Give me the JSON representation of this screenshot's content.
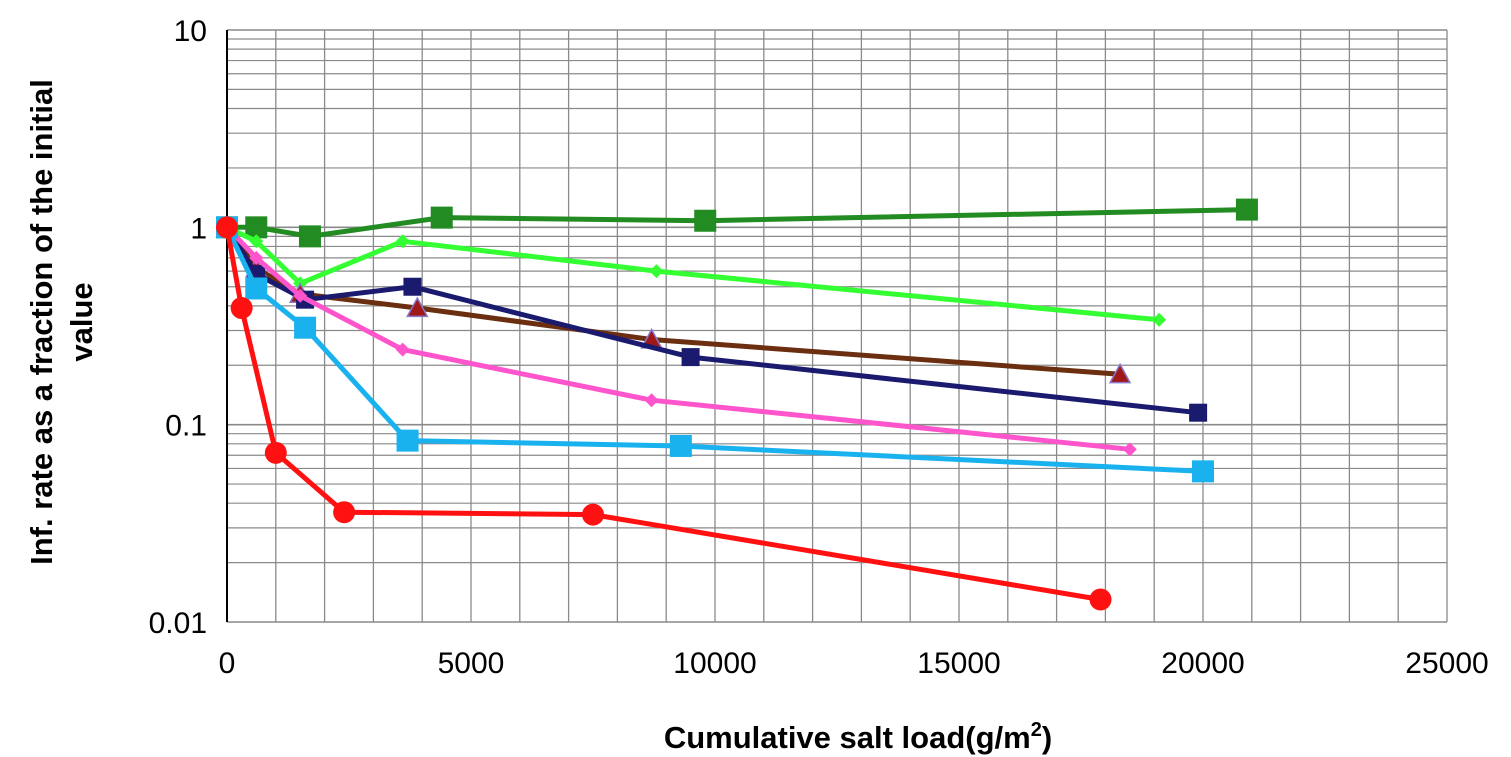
{
  "chart_data": {
    "type": "line",
    "title": "",
    "xlabel": "Cumulative salt load(g/m",
    "xlabel_sup": "2",
    "xlabel_close": ")",
    "ylabel_line1": "Inf.  rate as a fraction of  the initial",
    "ylabel_line2": "value",
    "y_scale": "log",
    "xlim": [
      0,
      25000
    ],
    "ylim": [
      0.01,
      10
    ],
    "x_ticks": [
      0,
      5000,
      10000,
      15000,
      20000,
      25000
    ],
    "x_tick_labels": [
      "0",
      "5000",
      "10000",
      "15000",
      "20000",
      "25000"
    ],
    "y_ticks": [
      0.01,
      0.1,
      1,
      10
    ],
    "y_tick_labels": [
      "0.01",
      "0.1",
      "1",
      "10"
    ],
    "grid": true,
    "legend": "none",
    "series": [
      {
        "color": "#228B22",
        "marker": "square",
        "marker_size": 22,
        "x": [
          0,
          600,
          1700,
          4400,
          9800,
          20900
        ],
        "y": [
          1.0,
          1.0,
          0.9,
          1.12,
          1.08,
          1.23
        ]
      },
      {
        "color": "#33ff33",
        "marker": "diamond",
        "marker_size": 14,
        "x": [
          0,
          600,
          1500,
          3600,
          8800,
          19100
        ],
        "y": [
          1.0,
          0.85,
          0.52,
          0.85,
          0.6,
          0.34
        ]
      },
      {
        "color": "#6b2e10",
        "marker": "triangle",
        "marker_color": "#a01818",
        "marker_size": 20,
        "x": [
          0,
          600,
          1500,
          3900,
          8700,
          18300
        ],
        "y": [
          1.0,
          0.62,
          0.46,
          0.39,
          0.27,
          0.18
        ]
      },
      {
        "color": "#1a1a6e",
        "marker": "square",
        "marker_size": 18,
        "x": [
          0,
          600,
          1600,
          3800,
          9500,
          19900
        ],
        "y": [
          1.0,
          0.58,
          0.43,
          0.5,
          0.22,
          0.115
        ]
      },
      {
        "color": "#ff55cc",
        "marker": "diamond",
        "marker_size": 14,
        "x": [
          0,
          600,
          1500,
          3600,
          8700,
          18500
        ],
        "y": [
          1.0,
          0.7,
          0.45,
          0.24,
          0.133,
          0.075
        ]
      },
      {
        "color": "#1ab2ee",
        "marker": "square",
        "marker_size": 22,
        "x": [
          0,
          600,
          1600,
          3700,
          9300,
          20000
        ],
        "y": [
          1.0,
          0.49,
          0.31,
          0.083,
          0.078,
          0.058
        ]
      },
      {
        "color": "#ff1111",
        "marker": "circle",
        "marker_size": 11,
        "x": [
          0,
          300,
          1000,
          2400,
          7500,
          17900
        ],
        "y": [
          1.0,
          0.39,
          0.072,
          0.036,
          0.035,
          0.013
        ]
      }
    ]
  }
}
